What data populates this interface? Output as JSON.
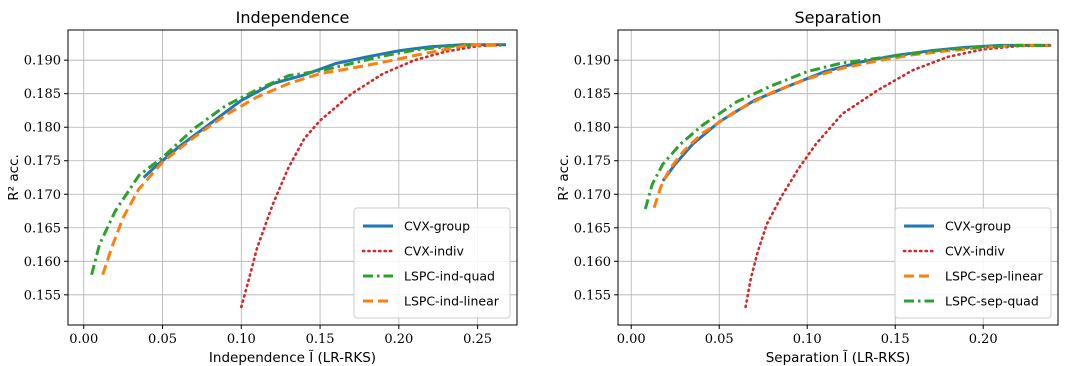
{
  "colors": {
    "cvx_group": "#1f77b4",
    "cvx_indiv": "#d62728",
    "lspc_quad": "#2ca02c",
    "lspc_linear": "#ff7f0e",
    "grid": "#b0b0b0"
  },
  "chart_data": [
    {
      "type": "line",
      "title": "Independence",
      "xlabel": "Independence Ĩ (LR-RKS)",
      "ylabel": "R² acc.",
      "xlim": [
        -0.01,
        0.275
      ],
      "ylim": [
        0.1505,
        0.1945
      ],
      "x_ticks": [
        0.0,
        0.05,
        0.1,
        0.15,
        0.2,
        0.25
      ],
      "x_tick_labels": [
        "0.00",
        "0.05",
        "0.10",
        "0.15",
        "0.20",
        "0.25"
      ],
      "y_ticks": [
        0.155,
        0.16,
        0.165,
        0.17,
        0.175,
        0.18,
        0.185,
        0.19
      ],
      "y_tick_labels": [
        "0.155",
        "0.160",
        "0.165",
        "0.170",
        "0.175",
        "0.180",
        "0.185",
        "0.190"
      ],
      "grid": true,
      "legend_position": "lower-right",
      "series": [
        {
          "name": "CVX-group",
          "style": "solid",
          "color_key": "cvx_group",
          "x": [
            0.038,
            0.045,
            0.06,
            0.08,
            0.1,
            0.12,
            0.14,
            0.16,
            0.18,
            0.2,
            0.22,
            0.24,
            0.268
          ],
          "y": [
            0.1725,
            0.174,
            0.177,
            0.1805,
            0.184,
            0.1865,
            0.1878,
            0.1895,
            0.1905,
            0.1914,
            0.192,
            0.1923,
            0.1923
          ]
        },
        {
          "name": "CVX-indiv",
          "style": "dotted",
          "color_key": "cvx_indiv",
          "x": [
            0.1,
            0.105,
            0.11,
            0.12,
            0.13,
            0.14,
            0.15,
            0.17,
            0.19,
            0.21,
            0.23,
            0.25,
            0.265
          ],
          "y": [
            0.1532,
            0.1575,
            0.162,
            0.1685,
            0.174,
            0.1783,
            0.181,
            0.185,
            0.188,
            0.19,
            0.1913,
            0.1921,
            0.1923
          ]
        },
        {
          "name": "LSPC-ind-quad",
          "style": "dashdot",
          "color_key": "lspc_quad",
          "x": [
            0.005,
            0.01,
            0.02,
            0.035,
            0.05,
            0.07,
            0.09,
            0.11,
            0.13,
            0.15,
            0.17,
            0.19,
            0.21,
            0.23,
            0.245,
            0.265
          ],
          "y": [
            0.158,
            0.1625,
            0.1675,
            0.1728,
            0.1755,
            0.1798,
            0.1832,
            0.1856,
            0.1877,
            0.1884,
            0.1895,
            0.1906,
            0.1915,
            0.192,
            0.1923,
            0.1922
          ]
        },
        {
          "name": "LSPC-ind-linear",
          "style": "dashed",
          "color_key": "lspc_linear",
          "x": [
            0.012,
            0.018,
            0.025,
            0.035,
            0.05,
            0.07,
            0.09,
            0.11,
            0.13,
            0.15,
            0.17,
            0.19,
            0.21,
            0.23,
            0.245,
            0.265
          ],
          "y": [
            0.158,
            0.1622,
            0.1665,
            0.1708,
            0.1748,
            0.1785,
            0.1818,
            0.1845,
            0.1865,
            0.188,
            0.1888,
            0.1897,
            0.1907,
            0.1916,
            0.1923,
            0.1922
          ]
        }
      ]
    },
    {
      "type": "line",
      "title": "Separation",
      "xlabel": "Separation Ĩ (LR-RKS)",
      "ylabel": "R² acc.",
      "xlim": [
        -0.0075,
        0.2425
      ],
      "ylim": [
        0.1505,
        0.1945
      ],
      "x_ticks": [
        0.0,
        0.05,
        0.1,
        0.15,
        0.2
      ],
      "x_tick_labels": [
        "0.00",
        "0.05",
        "0.10",
        "0.15",
        "0.20"
      ],
      "y_ticks": [
        0.155,
        0.16,
        0.165,
        0.17,
        0.175,
        0.18,
        0.185,
        0.19
      ],
      "y_tick_labels": [
        "0.155",
        "0.160",
        "0.165",
        "0.170",
        "0.175",
        "0.180",
        "0.185",
        "0.190"
      ],
      "grid": true,
      "legend_position": "lower-right",
      "series": [
        {
          "name": "CVX-group",
          "style": "solid",
          "color_key": "cvx_group",
          "x": [
            0.018,
            0.025,
            0.035,
            0.05,
            0.07,
            0.09,
            0.11,
            0.13,
            0.15,
            0.17,
            0.19,
            0.21,
            0.238
          ],
          "y": [
            0.172,
            0.1745,
            0.1775,
            0.1808,
            0.184,
            0.1862,
            0.1883,
            0.1897,
            0.1907,
            0.1914,
            0.1919,
            0.1922,
            0.1922
          ]
        },
        {
          "name": "CVX-indiv",
          "style": "dotted",
          "color_key": "cvx_indiv",
          "x": [
            0.065,
            0.068,
            0.072,
            0.077,
            0.085,
            0.095,
            0.105,
            0.12,
            0.14,
            0.16,
            0.18,
            0.2,
            0.22,
            0.238
          ],
          "y": [
            0.1532,
            0.1575,
            0.1615,
            0.1655,
            0.1695,
            0.1738,
            0.1775,
            0.182,
            0.1855,
            0.1885,
            0.1905,
            0.1916,
            0.1921,
            0.1922
          ]
        },
        {
          "name": "LSPC-sep-linear",
          "style": "dashed",
          "color_key": "lspc_linear",
          "x": [
            0.013,
            0.017,
            0.022,
            0.03,
            0.04,
            0.06,
            0.08,
            0.1,
            0.12,
            0.14,
            0.16,
            0.18,
            0.2,
            0.22,
            0.238
          ],
          "y": [
            0.168,
            0.1712,
            0.1738,
            0.1765,
            0.179,
            0.1825,
            0.1852,
            0.1872,
            0.1888,
            0.1899,
            0.1908,
            0.1914,
            0.1919,
            0.1922,
            0.1922
          ]
        },
        {
          "name": "LSPC-sep-quad",
          "style": "dashdot",
          "color_key": "lspc_quad",
          "x": [
            0.008,
            0.012,
            0.018,
            0.028,
            0.04,
            0.06,
            0.08,
            0.1,
            0.12,
            0.14,
            0.16,
            0.18,
            0.2,
            0.22,
            0.238
          ],
          "y": [
            0.1678,
            0.1715,
            0.1745,
            0.1775,
            0.1802,
            0.1838,
            0.1862,
            0.1883,
            0.1896,
            0.1903,
            0.191,
            0.1916,
            0.192,
            0.1922,
            0.1922
          ]
        }
      ]
    }
  ]
}
